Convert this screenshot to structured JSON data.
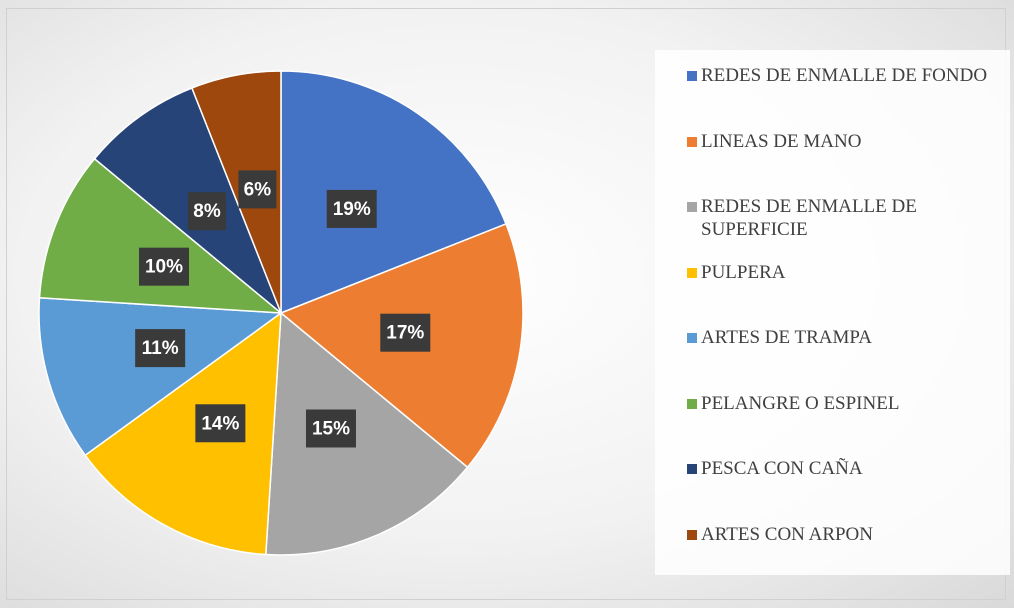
{
  "chart_data": {
    "type": "pie",
    "categories": [
      "REDES DE ENMALLE DE FONDO",
      "LINEAS DE MANO",
      "REDES DE ENMALLE DE SUPERFICIE",
      "PULPERA",
      "ARTES DE TRAMPA",
      "PELANGRE O ESPINEL",
      "PESCA CON CAÑA",
      "ARTES CON ARPON"
    ],
    "values": [
      19,
      17,
      15,
      14,
      11,
      10,
      8,
      6
    ],
    "value_labels": [
      "19%",
      "17%",
      "15%",
      "14%",
      "11%",
      "10%",
      "8%",
      "6%"
    ],
    "colors": [
      "#4472c4",
      "#ed7d31",
      "#a5a5a5",
      "#ffc000",
      "#5b9bd5",
      "#70ad47",
      "#264478",
      "#9e480e"
    ],
    "legend": "right"
  }
}
